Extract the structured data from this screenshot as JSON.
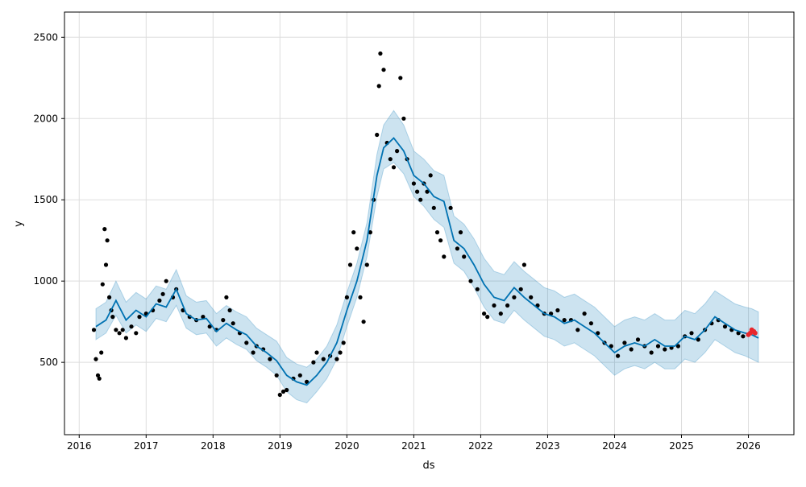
{
  "chart_data": {
    "type": "line",
    "xlabel": "ds",
    "ylabel": "y",
    "xlim": [
      2015.78,
      2026.68
    ],
    "ylim": [
      55,
      2655
    ],
    "x_ticks": [
      2016,
      2017,
      2018,
      2019,
      2020,
      2021,
      2022,
      2023,
      2024,
      2025,
      2026
    ],
    "y_ticks": [
      500,
      1000,
      1500,
      2000,
      2500
    ],
    "grid": true,
    "colors": {
      "forecast": "#0072B2",
      "band": "#0072B2",
      "observed": "#000000",
      "recent": "#e8272c"
    },
    "forecast": {
      "x": [
        2016.25,
        2016.4,
        2016.55,
        2016.7,
        2016.85,
        2017.0,
        2017.15,
        2017.3,
        2017.45,
        2017.6,
        2017.75,
        2017.9,
        2018.05,
        2018.2,
        2018.35,
        2018.5,
        2018.65,
        2018.8,
        2018.95,
        2019.1,
        2019.25,
        2019.4,
        2019.55,
        2019.7,
        2019.85,
        2020.0,
        2020.15,
        2020.3,
        2020.45,
        2020.55,
        2020.7,
        2020.85,
        2021.0,
        2021.15,
        2021.3,
        2021.45,
        2021.6,
        2021.75,
        2021.9,
        2022.05,
        2022.2,
        2022.35,
        2022.5,
        2022.65,
        2022.8,
        2022.95,
        2023.1,
        2023.25,
        2023.4,
        2023.55,
        2023.7,
        2023.85,
        2024.0,
        2024.15,
        2024.3,
        2024.45,
        2024.6,
        2024.75,
        2024.9,
        2025.05,
        2025.2,
        2025.35,
        2025.5,
        2025.65,
        2025.8,
        2025.95,
        2026.05,
        2026.15
      ],
      "y": [
        720,
        760,
        880,
        760,
        820,
        780,
        860,
        840,
        950,
        800,
        760,
        770,
        690,
        740,
        700,
        670,
        600,
        560,
        510,
        420,
        380,
        360,
        420,
        500,
        620,
        820,
        1000,
        1250,
        1650,
        1820,
        1880,
        1800,
        1650,
        1600,
        1520,
        1490,
        1250,
        1200,
        1100,
        980,
        900,
        880,
        960,
        900,
        850,
        800,
        780,
        740,
        760,
        720,
        680,
        620,
        560,
        600,
        620,
        600,
        640,
        600,
        600,
        660,
        640,
        700,
        780,
        740,
        700,
        680,
        670,
        650
      ]
    },
    "band_lower": [
      640,
      680,
      790,
      680,
      730,
      690,
      770,
      750,
      850,
      710,
      670,
      680,
      600,
      650,
      610,
      580,
      510,
      470,
      420,
      320,
      270,
      250,
      320,
      400,
      520,
      720,
      900,
      1150,
      1520,
      1690,
      1730,
      1660,
      1520,
      1460,
      1380,
      1330,
      1110,
      1060,
      960,
      840,
      760,
      740,
      820,
      760,
      710,
      660,
      640,
      600,
      620,
      580,
      540,
      480,
      420,
      460,
      480,
      460,
      500,
      460,
      460,
      520,
      500,
      560,
      640,
      600,
      560,
      540,
      520,
      500
    ],
    "band_upper": [
      830,
      870,
      1000,
      870,
      930,
      890,
      970,
      950,
      1070,
      910,
      870,
      880,
      800,
      850,
      810,
      780,
      710,
      670,
      630,
      530,
      490,
      470,
      520,
      600,
      730,
      930,
      1110,
      1360,
      1780,
      1960,
      2050,
      1960,
      1800,
      1750,
      1680,
      1650,
      1400,
      1350,
      1260,
      1140,
      1060,
      1040,
      1120,
      1060,
      1010,
      960,
      940,
      900,
      920,
      880,
      840,
      780,
      720,
      760,
      780,
      760,
      800,
      760,
      760,
      820,
      800,
      860,
      940,
      900,
      860,
      840,
      830,
      810
    ],
    "observed": {
      "x": [
        2016.22,
        2016.25,
        2016.28,
        2016.3,
        2016.33,
        2016.35,
        2016.38,
        2016.4,
        2016.42,
        2016.45,
        2016.48,
        2016.5,
        2016.55,
        2016.6,
        2016.65,
        2016.7,
        2016.78,
        2016.85,
        2016.9,
        2017.0,
        2017.1,
        2017.2,
        2017.25,
        2017.3,
        2017.4,
        2017.45,
        2017.55,
        2017.65,
        2017.75,
        2017.85,
        2017.95,
        2018.05,
        2018.15,
        2018.2,
        2018.25,
        2018.3,
        2018.4,
        2018.5,
        2018.6,
        2018.65,
        2018.75,
        2018.85,
        2018.95,
        2019.0,
        2019.05,
        2019.1,
        2019.2,
        2019.3,
        2019.4,
        2019.5,
        2019.55,
        2019.65,
        2019.75,
        2019.85,
        2019.9,
        2019.95,
        2020.0,
        2020.05,
        2020.1,
        2020.15,
        2020.2,
        2020.25,
        2020.3,
        2020.35,
        2020.4,
        2020.45,
        2020.48,
        2020.5,
        2020.55,
        2020.6,
        2020.65,
        2020.7,
        2020.75,
        2020.8,
        2020.85,
        2020.9,
        2021.0,
        2021.05,
        2021.1,
        2021.15,
        2021.2,
        2021.25,
        2021.3,
        2021.35,
        2021.4,
        2021.45,
        2021.55,
        2021.65,
        2021.7,
        2021.75,
        2021.85,
        2021.95,
        2022.05,
        2022.1,
        2022.2,
        2022.3,
        2022.4,
        2022.5,
        2022.6,
        2022.65,
        2022.75,
        2022.85,
        2022.95,
        2023.05,
        2023.15,
        2023.25,
        2023.35,
        2023.45,
        2023.55,
        2023.65,
        2023.75,
        2023.85,
        2023.95,
        2024.05,
        2024.15,
        2024.25,
        2024.35,
        2024.45,
        2024.55,
        2024.65,
        2024.75,
        2024.85,
        2024.95,
        2025.05,
        2025.15,
        2025.25,
        2025.35,
        2025.45,
        2025.55,
        2025.65,
        2025.75,
        2025.85,
        2025.92
      ],
      "y": [
        700,
        520,
        420,
        400,
        560,
        980,
        1320,
        1100,
        1250,
        900,
        820,
        780,
        700,
        680,
        700,
        650,
        720,
        680,
        780,
        800,
        820,
        880,
        920,
        1000,
        900,
        950,
        820,
        780,
        760,
        780,
        720,
        700,
        760,
        900,
        820,
        740,
        680,
        620,
        560,
        600,
        580,
        520,
        420,
        300,
        320,
        330,
        400,
        420,
        380,
        500,
        560,
        520,
        540,
        520,
        560,
        620,
        900,
        1100,
        1300,
        1200,
        900,
        750,
        1100,
        1300,
        1500,
        1900,
        2200,
        2400,
        2300,
        1850,
        1750,
        1700,
        1800,
        2250,
        2000,
        1750,
        1600,
        1550,
        1500,
        1600,
        1550,
        1650,
        1450,
        1300,
        1250,
        1150,
        1450,
        1200,
        1300,
        1150,
        1000,
        950,
        800,
        780,
        850,
        800,
        850,
        900,
        950,
        1100,
        900,
        850,
        800,
        800,
        820,
        760,
        760,
        700,
        800,
        740,
        680,
        620,
        600,
        540,
        620,
        580,
        640,
        600,
        560,
        600,
        580,
        590,
        600,
        660,
        680,
        640,
        700,
        740,
        760,
        720,
        700,
        680,
        660
      ]
    },
    "recent": {
      "x": [
        2026.0,
        2026.03,
        2026.05,
        2026.08,
        2026.1
      ],
      "y": [
        670,
        680,
        700,
        690,
        680
      ]
    }
  }
}
